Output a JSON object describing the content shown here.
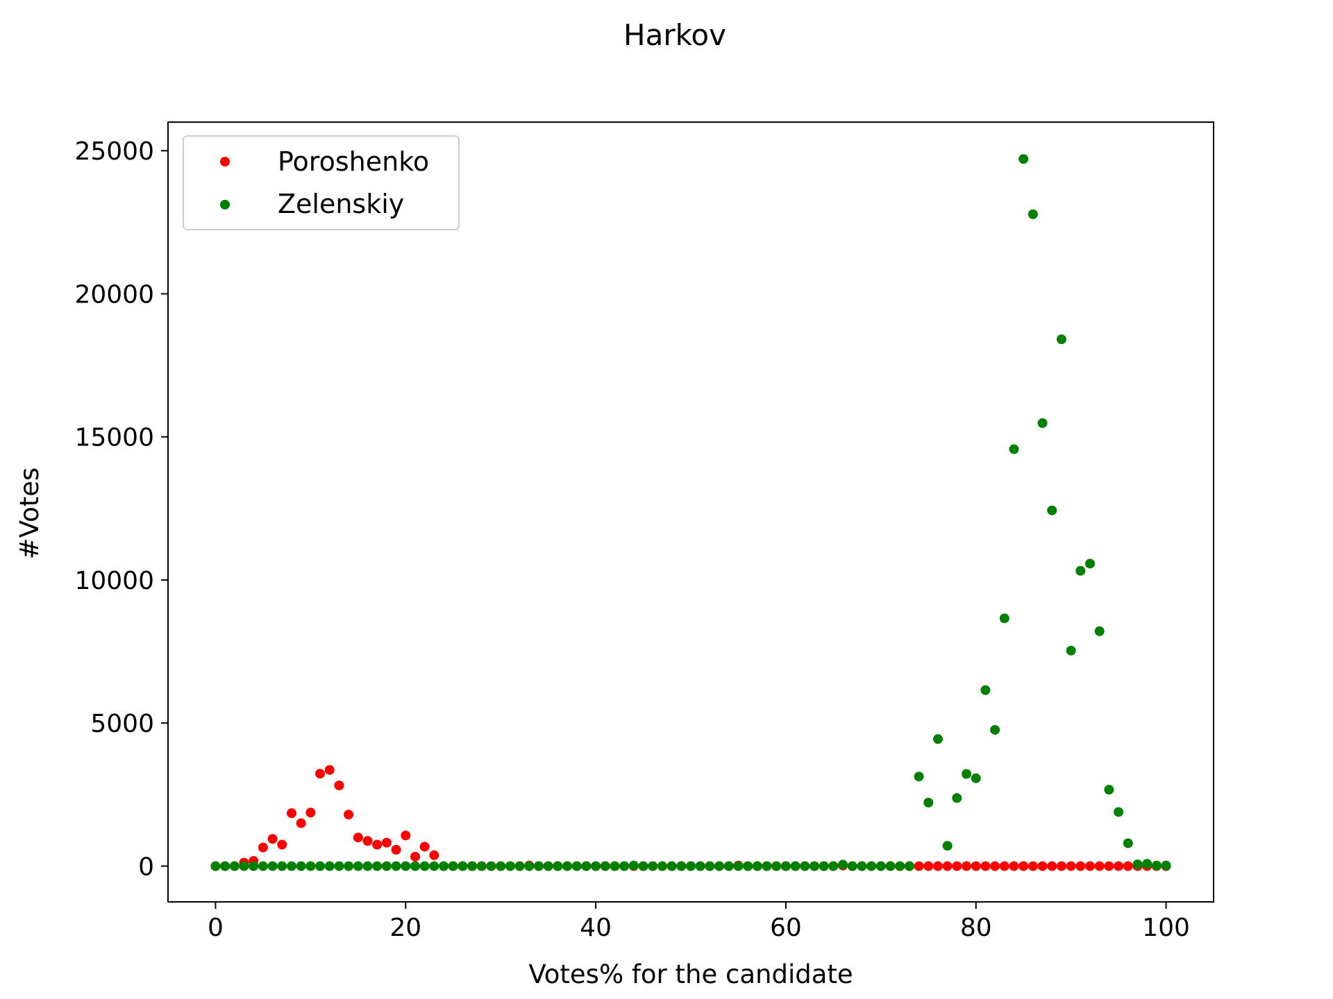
{
  "chart_data": {
    "type": "scatter",
    "title": "Harkov",
    "xlabel": "Votes% for the candidate",
    "ylabel": "#Votes",
    "xlim": [
      -5,
      105
    ],
    "ylim": [
      -1250,
      26000
    ],
    "xticks": [
      0,
      20,
      40,
      60,
      80,
      100
    ],
    "yticks": [
      0,
      5000,
      10000,
      15000,
      20000,
      25000
    ],
    "grid": false,
    "legend_position": "top-left",
    "series": [
      {
        "name": "Poroshenko",
        "color": "#ff0000",
        "points": [
          [
            0,
            0
          ],
          [
            1,
            0
          ],
          [
            2,
            0
          ],
          [
            3,
            120
          ],
          [
            4,
            180
          ],
          [
            5,
            650
          ],
          [
            6,
            950
          ],
          [
            7,
            750
          ],
          [
            8,
            1850
          ],
          [
            9,
            1500
          ],
          [
            10,
            1870
          ],
          [
            11,
            3230
          ],
          [
            12,
            3360
          ],
          [
            13,
            2820
          ],
          [
            14,
            1800
          ],
          [
            15,
            1000
          ],
          [
            16,
            880
          ],
          [
            17,
            750
          ],
          [
            18,
            820
          ],
          [
            19,
            570
          ],
          [
            20,
            1070
          ],
          [
            21,
            330
          ],
          [
            22,
            680
          ],
          [
            23,
            380
          ],
          [
            24,
            0
          ],
          [
            25,
            0
          ],
          [
            26,
            0
          ],
          [
            27,
            0
          ],
          [
            28,
            0
          ],
          [
            29,
            0
          ],
          [
            30,
            0
          ],
          [
            31,
            0
          ],
          [
            32,
            0
          ],
          [
            33,
            20
          ],
          [
            34,
            0
          ],
          [
            35,
            0
          ],
          [
            36,
            0
          ],
          [
            37,
            0
          ],
          [
            38,
            0
          ],
          [
            39,
            0
          ],
          [
            40,
            0
          ],
          [
            41,
            0
          ],
          [
            42,
            0
          ],
          [
            43,
            0
          ],
          [
            44,
            0
          ],
          [
            45,
            0
          ],
          [
            46,
            0
          ],
          [
            47,
            0
          ],
          [
            48,
            0
          ],
          [
            49,
            0
          ],
          [
            50,
            0
          ],
          [
            51,
            0
          ],
          [
            52,
            0
          ],
          [
            53,
            0
          ],
          [
            54,
            0
          ],
          [
            55,
            20
          ],
          [
            56,
            0
          ],
          [
            57,
            0
          ],
          [
            58,
            0
          ],
          [
            59,
            0
          ],
          [
            60,
            0
          ],
          [
            61,
            0
          ],
          [
            62,
            0
          ],
          [
            63,
            0
          ],
          [
            64,
            0
          ],
          [
            65,
            0
          ],
          [
            66,
            20
          ],
          [
            67,
            0
          ],
          [
            68,
            0
          ],
          [
            69,
            0
          ],
          [
            70,
            0
          ],
          [
            71,
            0
          ],
          [
            72,
            0
          ],
          [
            73,
            0
          ],
          [
            74,
            0
          ],
          [
            75,
            0
          ],
          [
            76,
            0
          ],
          [
            77,
            0
          ],
          [
            78,
            0
          ],
          [
            79,
            0
          ],
          [
            80,
            0
          ],
          [
            81,
            0
          ],
          [
            82,
            0
          ],
          [
            83,
            0
          ],
          [
            84,
            0
          ],
          [
            85,
            0
          ],
          [
            86,
            0
          ],
          [
            87,
            0
          ],
          [
            88,
            0
          ],
          [
            89,
            0
          ],
          [
            90,
            0
          ],
          [
            91,
            0
          ],
          [
            92,
            0
          ],
          [
            93,
            0
          ],
          [
            94,
            0
          ],
          [
            95,
            0
          ],
          [
            96,
            0
          ],
          [
            97,
            0
          ],
          [
            98,
            0
          ],
          [
            99,
            0
          ],
          [
            100,
            0
          ]
        ]
      },
      {
        "name": "Zelenskiy",
        "color": "#008000",
        "points": [
          [
            0,
            0
          ],
          [
            1,
            0
          ],
          [
            2,
            0
          ],
          [
            3,
            0
          ],
          [
            4,
            0
          ],
          [
            5,
            0
          ],
          [
            6,
            0
          ],
          [
            7,
            0
          ],
          [
            8,
            0
          ],
          [
            9,
            0
          ],
          [
            10,
            0
          ],
          [
            11,
            0
          ],
          [
            12,
            0
          ],
          [
            13,
            0
          ],
          [
            14,
            0
          ],
          [
            15,
            0
          ],
          [
            16,
            0
          ],
          [
            17,
            0
          ],
          [
            18,
            0
          ],
          [
            19,
            0
          ],
          [
            20,
            0
          ],
          [
            21,
            0
          ],
          [
            22,
            0
          ],
          [
            23,
            0
          ],
          [
            24,
            0
          ],
          [
            25,
            0
          ],
          [
            26,
            0
          ],
          [
            27,
            0
          ],
          [
            28,
            0
          ],
          [
            29,
            0
          ],
          [
            30,
            0
          ],
          [
            31,
            0
          ],
          [
            32,
            0
          ],
          [
            33,
            0
          ],
          [
            34,
            0
          ],
          [
            35,
            0
          ],
          [
            36,
            0
          ],
          [
            37,
            0
          ],
          [
            38,
            0
          ],
          [
            39,
            0
          ],
          [
            40,
            0
          ],
          [
            41,
            0
          ],
          [
            42,
            0
          ],
          [
            43,
            0
          ],
          [
            44,
            20
          ],
          [
            45,
            0
          ],
          [
            46,
            0
          ],
          [
            47,
            0
          ],
          [
            48,
            0
          ],
          [
            49,
            0
          ],
          [
            50,
            0
          ],
          [
            51,
            0
          ],
          [
            52,
            0
          ],
          [
            53,
            0
          ],
          [
            54,
            0
          ],
          [
            55,
            0
          ],
          [
            56,
            0
          ],
          [
            57,
            0
          ],
          [
            58,
            0
          ],
          [
            59,
            0
          ],
          [
            60,
            0
          ],
          [
            61,
            0
          ],
          [
            62,
            0
          ],
          [
            63,
            0
          ],
          [
            64,
            0
          ],
          [
            65,
            0
          ],
          [
            66,
            50
          ],
          [
            67,
            0
          ],
          [
            68,
            0
          ],
          [
            69,
            0
          ],
          [
            70,
            0
          ],
          [
            71,
            0
          ],
          [
            72,
            0
          ],
          [
            73,
            0
          ],
          [
            74,
            3130
          ],
          [
            75,
            2220
          ],
          [
            76,
            4440
          ],
          [
            77,
            710
          ],
          [
            78,
            2380
          ],
          [
            79,
            3220
          ],
          [
            80,
            3070
          ],
          [
            81,
            6150
          ],
          [
            82,
            4760
          ],
          [
            83,
            8660
          ],
          [
            84,
            14570
          ],
          [
            85,
            24710
          ],
          [
            86,
            22780
          ],
          [
            87,
            15480
          ],
          [
            88,
            12430
          ],
          [
            89,
            18410
          ],
          [
            90,
            7530
          ],
          [
            91,
            10320
          ],
          [
            92,
            10570
          ],
          [
            93,
            8210
          ],
          [
            94,
            2670
          ],
          [
            95,
            1890
          ],
          [
            96,
            800
          ],
          [
            97,
            60
          ],
          [
            98,
            80
          ],
          [
            99,
            20
          ],
          [
            100,
            20
          ]
        ]
      }
    ]
  }
}
